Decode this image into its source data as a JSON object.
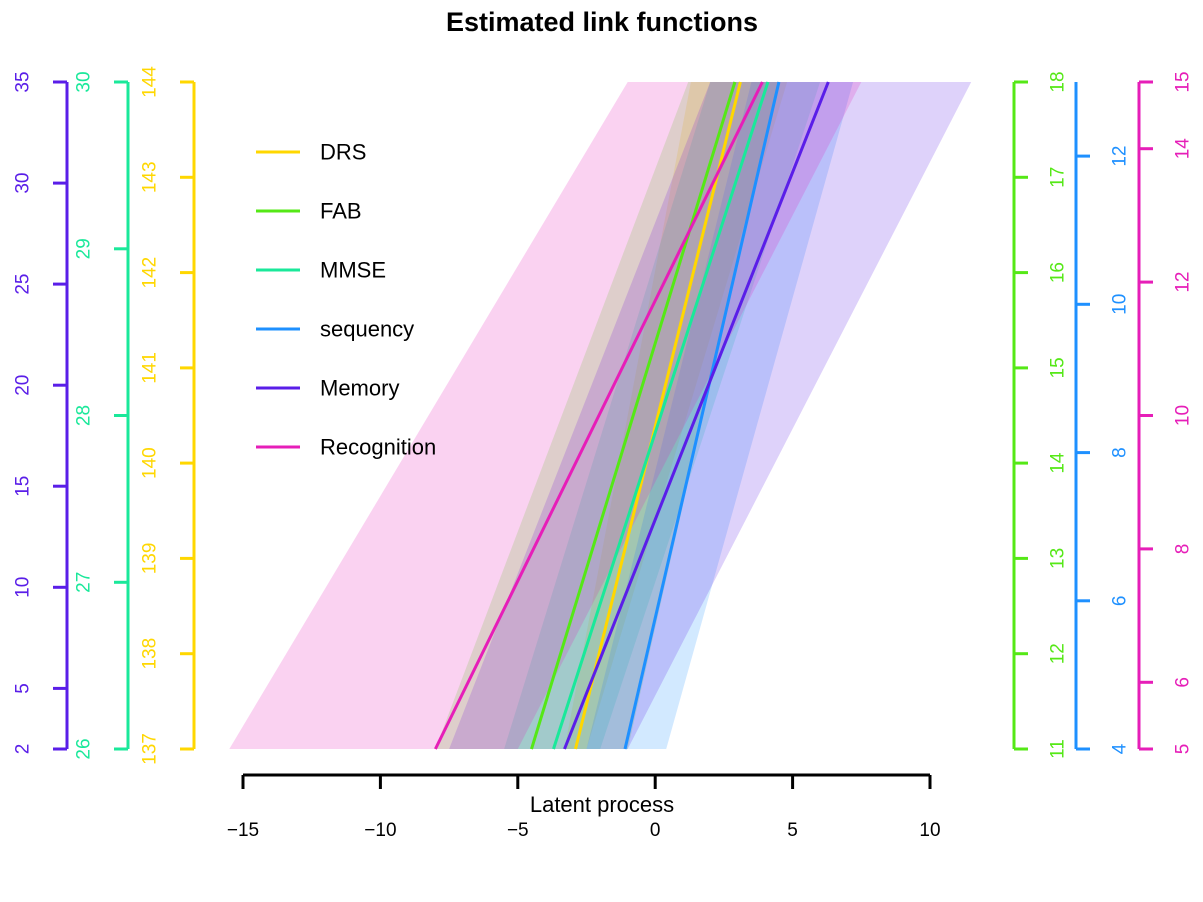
{
  "chart_data": {
    "type": "line",
    "title": "Estimated link functions",
    "xlabel": "Latent process",
    "xlim": [
      -15,
      10
    ],
    "xticks": [
      -15,
      -10,
      -5,
      0,
      5,
      10
    ],
    "x_tick_labels": [
      "−15",
      "−10",
      "−5",
      "0",
      "5",
      "10"
    ],
    "legend_position": "top-left",
    "series": [
      {
        "name": "DRS",
        "color": "#FFD700",
        "axis_side": "left",
        "range": [
          137,
          144
        ],
        "ticks": [
          137,
          138,
          139,
          140,
          141,
          142,
          143,
          144
        ],
        "x": [
          -2.9,
          3.1
        ],
        "y": [
          137,
          144
        ],
        "band_lower": [
          [
            -3.3,
            137
          ],
          [
            1.3,
            144
          ]
        ],
        "band_upper": [
          [
            -2.5,
            137
          ],
          [
            4.8,
            144
          ]
        ]
      },
      {
        "name": "FAB",
        "color": "#55E816",
        "axis_side": "right",
        "range": [
          11,
          18
        ],
        "ticks": [
          11,
          12,
          13,
          14,
          15,
          16,
          17,
          18
        ],
        "x": [
          -4.5,
          2.9
        ],
        "y": [
          11,
          18
        ],
        "band_lower": [
          [
            -8.0,
            11
          ],
          [
            1.2,
            18
          ]
        ],
        "band_upper": [
          [
            -1.0,
            11
          ],
          [
            4.5,
            18
          ]
        ]
      },
      {
        "name": "MMSE",
        "color": "#1AE89A",
        "axis_side": "left",
        "range": [
          26,
          30
        ],
        "ticks": [
          26,
          27,
          28,
          29,
          30
        ],
        "x": [
          -3.7,
          4.1
        ],
        "y": [
          26,
          30
        ],
        "band_lower": [
          [
            -5.5,
            26
          ],
          [
            2.0,
            30
          ]
        ],
        "band_upper": [
          [
            -2.0,
            26
          ],
          [
            6.0,
            30
          ]
        ]
      },
      {
        "name": "sequency",
        "color": "#1E90FF",
        "axis_side": "right",
        "range": [
          4,
          13
        ],
        "ticks": [
          4,
          6,
          8,
          10,
          12
        ],
        "x": [
          -1.1,
          4.5
        ],
        "y": [
          4,
          13
        ],
        "band_lower": [
          [
            -2.5,
            4
          ],
          [
            3.5,
            13
          ]
        ],
        "band_upper": [
          [
            0.4,
            4
          ],
          [
            7.2,
            13
          ]
        ]
      },
      {
        "name": "Memory",
        "color": "#5A1EE8",
        "axis_side": "left",
        "range": [
          2,
          35
        ],
        "ticks": [
          2,
          5,
          10,
          15,
          20,
          25,
          30,
          35
        ],
        "x": [
          -3.3,
          6.3
        ],
        "y": [
          2,
          35
        ],
        "band_lower": [
          [
            -7.5,
            2
          ],
          [
            2.0,
            35
          ]
        ],
        "band_upper": [
          [
            -1.0,
            2
          ],
          [
            11.5,
            35
          ]
        ]
      },
      {
        "name": "Recognition",
        "color": "#E61EB8",
        "axis_side": "right",
        "range": [
          5,
          15
        ],
        "ticks": [
          5,
          6,
          8,
          10,
          12,
          14,
          15
        ],
        "x": [
          -8.0,
          3.9
        ],
        "y": [
          5,
          15
        ],
        "band_lower": [
          [
            -15.5,
            5
          ],
          [
            -1.0,
            15
          ]
        ],
        "band_upper": [
          [
            -5.0,
            5
          ],
          [
            7.5,
            15
          ]
        ]
      }
    ]
  }
}
